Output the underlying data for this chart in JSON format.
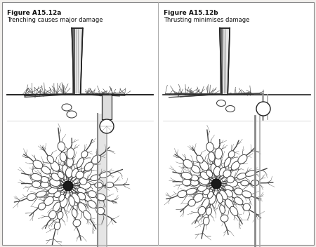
{
  "title_a": "Figure A15.12a",
  "subtitle_a": "Trenching causes major damage",
  "title_b": "Figure A15.12b",
  "subtitle_b": "Thrusting minimises damage",
  "bg_color": "#f2f0ed",
  "panel_bg": "#ffffff",
  "lc": "#222222",
  "rc": "#444444",
  "title_fontsize": 6.5,
  "fig_width": 4.5,
  "fig_height": 3.52
}
